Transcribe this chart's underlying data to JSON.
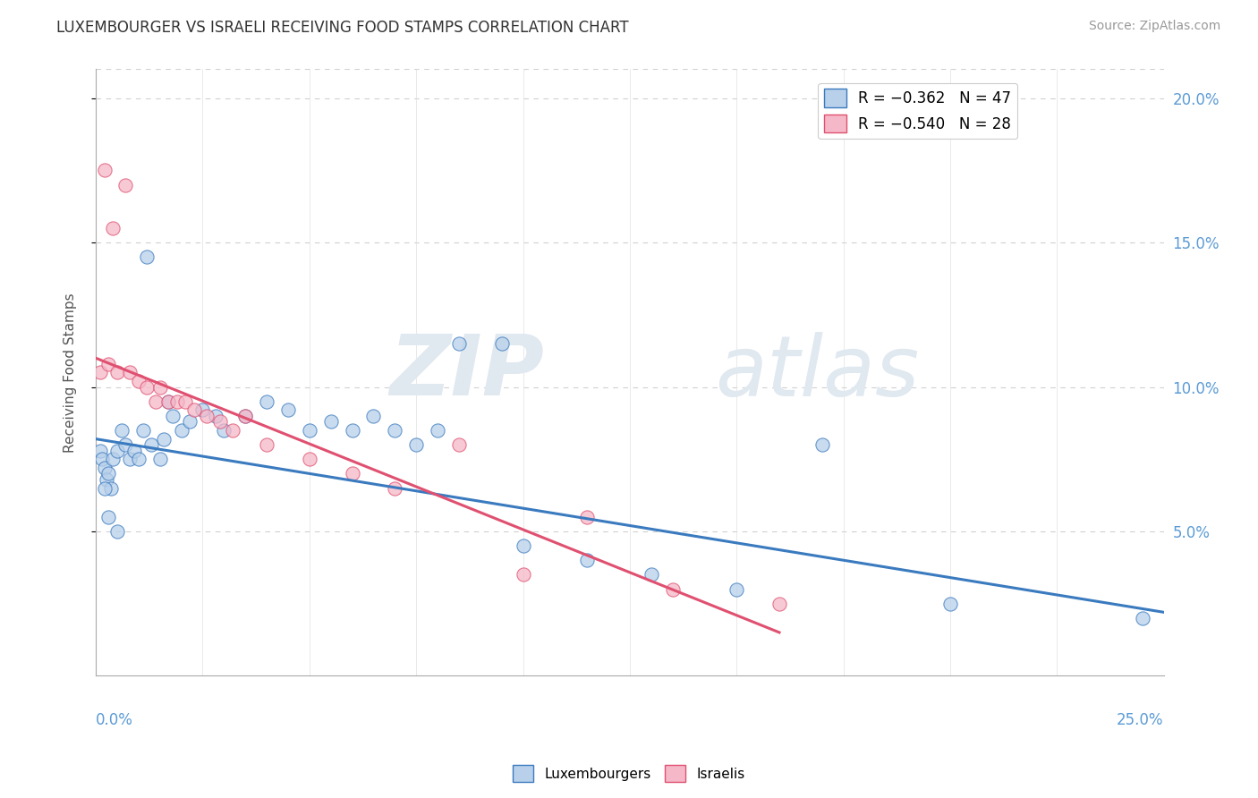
{
  "title": "LUXEMBOURGER VS ISRAELI RECEIVING FOOD STAMPS CORRELATION CHART",
  "source_text": "Source: ZipAtlas.com",
  "ylabel": "Receiving Food Stamps",
  "legend_blue_r": "-0.362",
  "legend_blue_n": "47",
  "legend_pink_r": "-0.540",
  "legend_pink_n": "28",
  "blue_color": "#b8d0ea",
  "pink_color": "#f5b8c8",
  "blue_line_color": "#3a7abf",
  "pink_line_color": "#e05070",
  "watermark_zip": "ZIP",
  "watermark_atlas": "atlas",
  "xlim": [
    0.0,
    25.0
  ],
  "ylim": [
    0.0,
    21.0
  ],
  "blue_x": [
    0.1,
    0.15,
    0.2,
    0.25,
    0.3,
    0.35,
    0.4,
    0.5,
    0.6,
    0.7,
    0.8,
    0.9,
    1.0,
    1.1,
    1.2,
    1.3,
    1.5,
    1.6,
    1.7,
    1.8,
    2.0,
    2.2,
    2.5,
    2.8,
    3.0,
    3.5,
    4.0,
    4.5,
    5.0,
    5.5,
    6.0,
    6.5,
    7.0,
    7.5,
    8.0,
    8.5,
    9.5,
    10.0,
    11.5,
    13.0,
    15.0,
    17.0,
    20.0,
    24.5,
    0.2,
    0.3,
    0.5
  ],
  "blue_y": [
    7.8,
    7.5,
    7.2,
    6.8,
    7.0,
    6.5,
    7.5,
    7.8,
    8.5,
    8.0,
    7.5,
    7.8,
    7.5,
    8.5,
    14.5,
    8.0,
    7.5,
    8.2,
    9.5,
    9.0,
    8.5,
    8.8,
    9.2,
    9.0,
    8.5,
    9.0,
    9.5,
    9.2,
    8.5,
    8.8,
    8.5,
    9.0,
    8.5,
    8.0,
    8.5,
    11.5,
    11.5,
    4.5,
    4.0,
    3.5,
    3.0,
    8.0,
    2.5,
    2.0,
    6.5,
    5.5,
    5.0
  ],
  "pink_x": [
    0.1,
    0.2,
    0.3,
    0.5,
    0.7,
    0.8,
    1.0,
    1.2,
    1.4,
    1.5,
    1.7,
    1.9,
    2.1,
    2.3,
    2.6,
    2.9,
    3.2,
    3.5,
    4.0,
    5.0,
    6.0,
    7.0,
    8.5,
    10.0,
    11.5,
    13.5,
    16.0,
    0.4
  ],
  "pink_y": [
    10.5,
    17.5,
    10.8,
    10.5,
    17.0,
    10.5,
    10.2,
    10.0,
    9.5,
    10.0,
    9.5,
    9.5,
    9.5,
    9.2,
    9.0,
    8.8,
    8.5,
    9.0,
    8.0,
    7.5,
    7.0,
    6.5,
    8.0,
    3.5,
    5.5,
    3.0,
    2.5,
    15.5
  ],
  "ytick_values": [
    5,
    10,
    15,
    20
  ],
  "background_color": "#ffffff",
  "grid_color": "#d0d0d0",
  "marker_size": 120
}
